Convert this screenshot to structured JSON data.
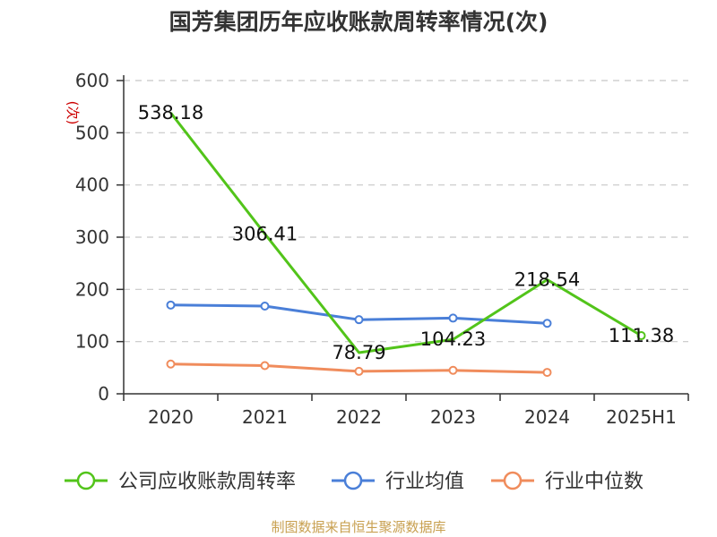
{
  "chart_data": {
    "type": "line",
    "title": "国芳集团历年应收账款周转率情况(次)",
    "ylabel": "(次)",
    "xlabel": "",
    "categories": [
      "2020",
      "2021",
      "2022",
      "2023",
      "2024",
      "2025H1"
    ],
    "ylim": [
      0,
      600
    ],
    "yticks": [
      0,
      100,
      200,
      300,
      400,
      500,
      600
    ],
    "grid": true,
    "legend_position": "bottom",
    "series": [
      {
        "name": "公司应收账款周转率",
        "color": "#52c41a",
        "values": [
          538.18,
          306.41,
          78.79,
          104.23,
          218.54,
          111.38
        ],
        "labels": [
          "538.18",
          "306.41",
          "78.79",
          "104.23",
          "218.54",
          "111.38"
        ],
        "point_markers": [
          false,
          false,
          false,
          false,
          false,
          true
        ]
      },
      {
        "name": "行业均值",
        "color": "#4a7fd8",
        "values": [
          170,
          168,
          142,
          145,
          135,
          null
        ],
        "point_markers": [
          true,
          true,
          true,
          true,
          true,
          false
        ]
      },
      {
        "name": "行业中位数",
        "color": "#f08c5c",
        "values": [
          57,
          54,
          43,
          45,
          41,
          null
        ],
        "point_markers": [
          true,
          true,
          true,
          true,
          true,
          false
        ]
      }
    ],
    "source": "制图数据来自恒生聚源数据库"
  }
}
